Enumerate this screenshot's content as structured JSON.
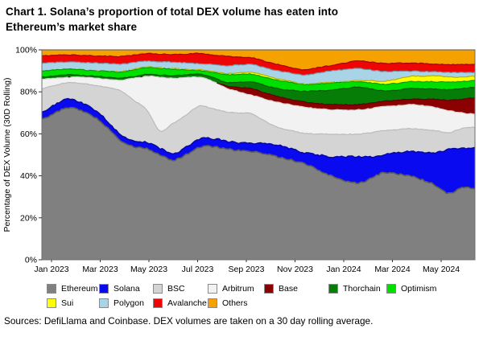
{
  "header": {
    "title_line1": "Chart 1. Solana’s proportion of total DEX volume has eaten into",
    "title_line2": "Ethereum’s market share"
  },
  "source": "Sources: DefiLlama and Coinbase. DEX volumes are taken on a 30 day rolling average.",
  "chart_data": {
    "type": "area",
    "stacked": true,
    "units": "percent share of total DEX volume, columns normalized to 100",
    "title": "Chart 1. Solana’s proportion of total DEX volume has eaten into Ethereum’s market share",
    "xlabel": "",
    "ylabel": "Percentage of DEX Volume (30D Rolling)",
    "ylim": [
      0,
      100
    ],
    "grid": false,
    "legend_position": "bottom",
    "ytick_values": [
      0,
      20,
      40,
      60,
      80,
      100
    ],
    "ytick_labels": [
      "0%",
      "20%",
      "40%",
      "60%",
      "80%",
      "100%"
    ],
    "xtick_labels": [
      "Jan 2023",
      "Mar 2023",
      "May 2023",
      "Jul 2023",
      "Sep 2023",
      "Nov 2023",
      "Jan 2024",
      "Mar 2024",
      "May 2024"
    ],
    "x_note": "months since Jan 2023, semi-monthly samples through end of May 2024",
    "x": [
      0,
      0.5,
      1,
      1.5,
      2,
      2.5,
      3,
      3.5,
      4,
      4.5,
      5,
      5.5,
      6,
      6.5,
      7,
      7.5,
      8,
      8.5,
      9,
      9.5,
      10,
      10.5,
      11,
      11.5,
      12,
      12.5,
      13,
      13.5,
      14,
      14.5,
      15,
      15.5,
      16,
      16.5
    ],
    "series": [
      {
        "name": "Ethereum",
        "color": "#808080",
        "values": [
          67,
          70,
          72.5,
          71,
          68,
          63,
          57,
          54,
          53,
          50,
          47.5,
          50,
          53.5,
          54,
          53,
          52,
          51.7,
          50.5,
          49,
          47.5,
          45.8,
          43,
          40,
          38,
          36.5,
          38.5,
          41.5,
          41,
          40,
          38,
          35.5,
          31.5,
          34.5,
          34
        ]
      },
      {
        "name": "Solana",
        "color": "#0a0af0",
        "values": [
          3.4,
          3.8,
          4,
          3.8,
          3.5,
          3,
          2.5,
          2.6,
          2.8,
          3,
          3.2,
          3.6,
          3.9,
          3.7,
          3.6,
          3.7,
          3.9,
          4.7,
          5.5,
          5.3,
          5.1,
          7,
          9,
          11,
          12.5,
          10.5,
          8.5,
          10,
          11.5,
          13,
          15.5,
          21,
          18.5,
          19.5
        ]
      },
      {
        "name": "BSC",
        "color": "#d4d4d4",
        "values": [
          11.2,
          9.2,
          7.8,
          9.2,
          11.5,
          16,
          21,
          19.4,
          15.6,
          8.5,
          14.3,
          15.4,
          15.8,
          14.3,
          13.9,
          14.3,
          13.9,
          10.8,
          8.5,
          8.7,
          9.3,
          10,
          10.8,
          10.8,
          10.8,
          11.5,
          11.5,
          11,
          11,
          11,
          10.5,
          8,
          9.5,
          9.6
        ]
      },
      {
        "name": "Arbitrum",
        "color": "#f2f2f2",
        "values": [
          4.5,
          3.5,
          2.7,
          3,
          3.5,
          4,
          5,
          10.5,
          16,
          25.5,
          21.5,
          17.8,
          13.8,
          13,
          11.5,
          10,
          8.9,
          10.5,
          12,
          12.3,
          12.5,
          12,
          11.7,
          11.6,
          11.6,
          11.5,
          11.5,
          11.5,
          11.5,
          11.5,
          11,
          10.5,
          7.5,
          6.3
        ]
      },
      {
        "name": "Base",
        "color": "#8b0000",
        "values": [
          0,
          0,
          0,
          0,
          0,
          0,
          0,
          0,
          0,
          0,
          0,
          0,
          0,
          0,
          1,
          2,
          3.2,
          3,
          2.8,
          2.4,
          2.5,
          2.5,
          2.5,
          2.5,
          2.5,
          2.5,
          2.5,
          2.5,
          2.5,
          3,
          4,
          5,
          6.5,
          7.7
        ]
      },
      {
        "name": "Thorchain",
        "color": "#067d06",
        "values": [
          1,
          1.1,
          1.1,
          0.8,
          1,
          1,
          1,
          0.8,
          1,
          1,
          1.3,
          1.3,
          1.5,
          2,
          1.5,
          2.6,
          3.2,
          3.5,
          3.7,
          4.6,
          5.1,
          6,
          6.8,
          7.6,
          8.3,
          7,
          5,
          5,
          5.1,
          5,
          4.8,
          5,
          5,
          5.1
        ]
      },
      {
        "name": "Optimism",
        "color": "#00e000",
        "values": [
          2.8,
          2.8,
          2.8,
          2.7,
          2.5,
          2.8,
          3,
          3.2,
          3.2,
          3.2,
          3,
          2.4,
          1.7,
          2.3,
          3.7,
          3.7,
          3.6,
          4,
          4,
          3.7,
          3.2,
          3.3,
          3.4,
          3,
          2.7,
          2.8,
          3.1,
          3.2,
          3.2,
          3.3,
          3.5,
          3.6,
          3.4,
          3.2
        ]
      },
      {
        "name": "Sui",
        "color": "#ffff00",
        "values": [
          0,
          0,
          0,
          0,
          0,
          0.1,
          0.2,
          0.25,
          0.3,
          0.3,
          0.3,
          0.3,
          0.3,
          0.45,
          0.6,
          0.75,
          0.9,
          0.8,
          0.7,
          0.5,
          0.3,
          0.35,
          0.4,
          0.45,
          0.5,
          1,
          1.5,
          2,
          2.6,
          2.7,
          2.8,
          2.5,
          2.2,
          2
        ]
      },
      {
        "name": "Polygon",
        "color": "#a9d4e8",
        "values": [
          3.8,
          3.6,
          3.3,
          3.5,
          3.8,
          3.6,
          3.5,
          3.25,
          2.7,
          2.9,
          3.1,
          3,
          3,
          3.25,
          3.7,
          3.75,
          3.8,
          3.7,
          3.8,
          4,
          4.2,
          4.85,
          5.4,
          5.65,
          5.8,
          5.2,
          4.6,
          3.8,
          2.5,
          2.2,
          1.9,
          2.1,
          2.1,
          1.9
        ]
      },
      {
        "name": "Avalanche",
        "color": "#ee0505",
        "values": [
          3.5,
          3.4,
          3.4,
          3.4,
          3.4,
          3.5,
          3.6,
          3.5,
          3.6,
          3.6,
          3.6,
          4.2,
          4.8,
          4.6,
          4.5,
          3.8,
          3.2,
          3,
          3,
          2.5,
          2.5,
          2.5,
          2.5,
          3,
          3.5,
          3.7,
          3.9,
          3.8,
          3.8,
          3.8,
          3.7,
          3.8,
          3.8,
          3.8
        ]
      },
      {
        "name": "Others",
        "color": "#f5a100",
        "values": [
          2.8,
          2.6,
          2.4,
          2.6,
          2.8,
          3,
          3.2,
          2.5,
          1.8,
          2,
          2.2,
          2,
          1.7,
          2.4,
          3,
          3.4,
          3.7,
          5.5,
          7,
          8.5,
          9.5,
          8.5,
          7.5,
          6.4,
          5.3,
          5.8,
          6.4,
          6.4,
          6.3,
          6.5,
          6.8,
          7,
          7,
          6.9
        ]
      }
    ]
  }
}
